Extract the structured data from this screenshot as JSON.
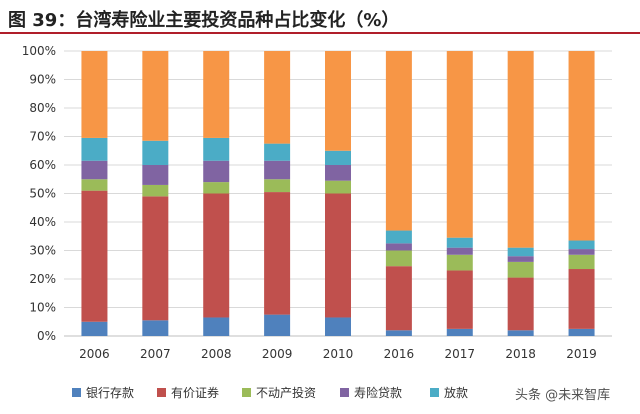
{
  "figure": {
    "title": "图 39：台湾寿险业主要投资品种占比变化（%）",
    "watermark": "头条 @未来智库"
  },
  "chart_data": {
    "type": "bar",
    "stacked": true,
    "categories": [
      "2006",
      "2007",
      "2008",
      "2009",
      "2010",
      "2016",
      "2017",
      "2018",
      "2019"
    ],
    "y_ticks": [
      "0%",
      "10%",
      "20%",
      "30%",
      "40%",
      "50%",
      "60%",
      "70%",
      "80%",
      "90%",
      "100%"
    ],
    "ylim": [
      0,
      100
    ],
    "grid": true,
    "legend_position": "bottom",
    "series": [
      {
        "name": "银行存款",
        "color": "#4f81bd",
        "values": [
          5,
          5.5,
          6.5,
          7.5,
          6.5,
          2,
          2.5,
          2,
          2.5
        ]
      },
      {
        "name": "有价证券",
        "color": "#c0504d",
        "values": [
          46,
          43.5,
          43.5,
          43,
          43.5,
          22.5,
          20.5,
          18.5,
          21
        ]
      },
      {
        "name": "不动产投资",
        "color": "#9bbb59",
        "values": [
          4,
          4,
          4,
          4.5,
          4.5,
          5.5,
          5.5,
          5.5,
          5
        ]
      },
      {
        "name": "寿险贷款",
        "color": "#8064a2",
        "values": [
          6.5,
          7,
          7.5,
          6.5,
          5.5,
          2.5,
          2.5,
          2,
          2
        ]
      },
      {
        "name": "放款",
        "color": "#4bacc6",
        "values": [
          8,
          8.5,
          8,
          6,
          5,
          4.5,
          3.5,
          3,
          3
        ]
      },
      {
        "name": "",
        "color": "#f79646",
        "values": [
          30.5,
          31.5,
          30.5,
          32.5,
          35,
          63,
          65.5,
          69,
          66.5
        ]
      }
    ]
  }
}
